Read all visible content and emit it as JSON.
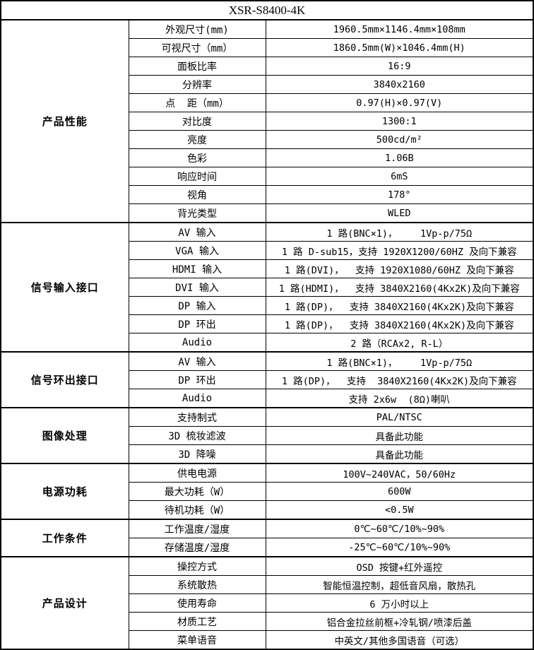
{
  "title": "XSR-S8400-4K",
  "sections": [
    {
      "category": "产品性能",
      "rows": [
        {
          "label": "外观尺寸(mm)",
          "value": "1960.5mm×1146.4mm×108mm"
        },
        {
          "label": "可视尺寸（mm）",
          "value": "1860.5mm(W)×1046.4mm(H)"
        },
        {
          "label": "面板比率",
          "value": "16:9"
        },
        {
          "label": "分辨率",
          "value": "3840x2160"
        },
        {
          "label": "点  距（mm）",
          "value": "0.97(H)×0.97(V)"
        },
        {
          "label": "对比度",
          "value": "1300:1"
        },
        {
          "label": "亮度",
          "value": "500cd/m²"
        },
        {
          "label": "色彩",
          "value": "1.06B"
        },
        {
          "label": "响应时间",
          "value": "6mS"
        },
        {
          "label": "视角",
          "value": "178°"
        },
        {
          "label": "背光类型",
          "value": "WLED"
        }
      ]
    },
    {
      "category": "信号输入接口",
      "rows": [
        {
          "label": "AV 输入",
          "value": "1 路(BNC×1)，    1Vp-p/75Ω"
        },
        {
          "label": "VGA 输入",
          "value": "1 路 D-sub15，支持 1920X1200/60HZ 及向下兼容"
        },
        {
          "label": "HDMI 输入",
          "value": "1 路(DVI)，  支持 1920X1080/60HZ 及向下兼容"
        },
        {
          "label": "DVI 输入",
          "value": "1 路(HDMI)，  支持 3840X2160(4Kx2K)及向下兼容"
        },
        {
          "label": "DP 输入",
          "value": "1 路(DP)，  支持 3840X2160(4Kx2K)及向下兼容"
        },
        {
          "label": "DP 环出",
          "value": "1 路(DP)，  支持 3840X2160(4Kx2K)及向下兼容"
        },
        {
          "label": "Audio",
          "value": "2 路（RCAx2, R-L）"
        }
      ]
    },
    {
      "category": "信号环出接口",
      "rows": [
        {
          "label": "AV 输入",
          "value": "1 路(BNC×1)，    1Vp-p/75Ω"
        },
        {
          "label": "DP 环出",
          "value": "1 路(DP)，  支持  3840X2160(4Kx2K)及向下兼容"
        },
        {
          "label": "Audio",
          "value": "支持 2x6w  (8Ω)喇叭"
        }
      ]
    },
    {
      "category": "图像处理",
      "rows": [
        {
          "label": "支持制式",
          "value": "PAL/NTSC"
        },
        {
          "label": "3D 梳妆滤波",
          "value": "具备此功能"
        },
        {
          "label": "3D 降噪",
          "value": "具备此功能"
        }
      ]
    },
    {
      "category": "电源功耗",
      "rows": [
        {
          "label": "供电电源",
          "value": "100V~240VAC，50/60Hz"
        },
        {
          "label": "最大功耗（W）",
          "value": "600W"
        },
        {
          "label": "待机功耗（W）",
          "value": "<0.5W"
        }
      ]
    },
    {
      "category": "工作条件",
      "rows": [
        {
          "label": "工作温度/湿度",
          "value": "0℃~60℃/10%~90%"
        },
        {
          "label": "存储温度/湿度",
          "value": "-25℃~60℃/10%~90%"
        }
      ]
    },
    {
      "category": "产品设计",
      "rows": [
        {
          "label": "操控方式",
          "value": "OSD 按键+红外遥控"
        },
        {
          "label": "系统散热",
          "value": "智能恒温控制，超低音风扇，散热孔"
        },
        {
          "label": "使用寿命",
          "value": "6 万小时以上"
        },
        {
          "label": "材质工艺",
          "value": "铝合金拉丝前框+冷轧钢/喷漆后盖"
        },
        {
          "label": "菜单语音",
          "value": "中英文/其他多国语音（可选）"
        }
      ]
    }
  ]
}
